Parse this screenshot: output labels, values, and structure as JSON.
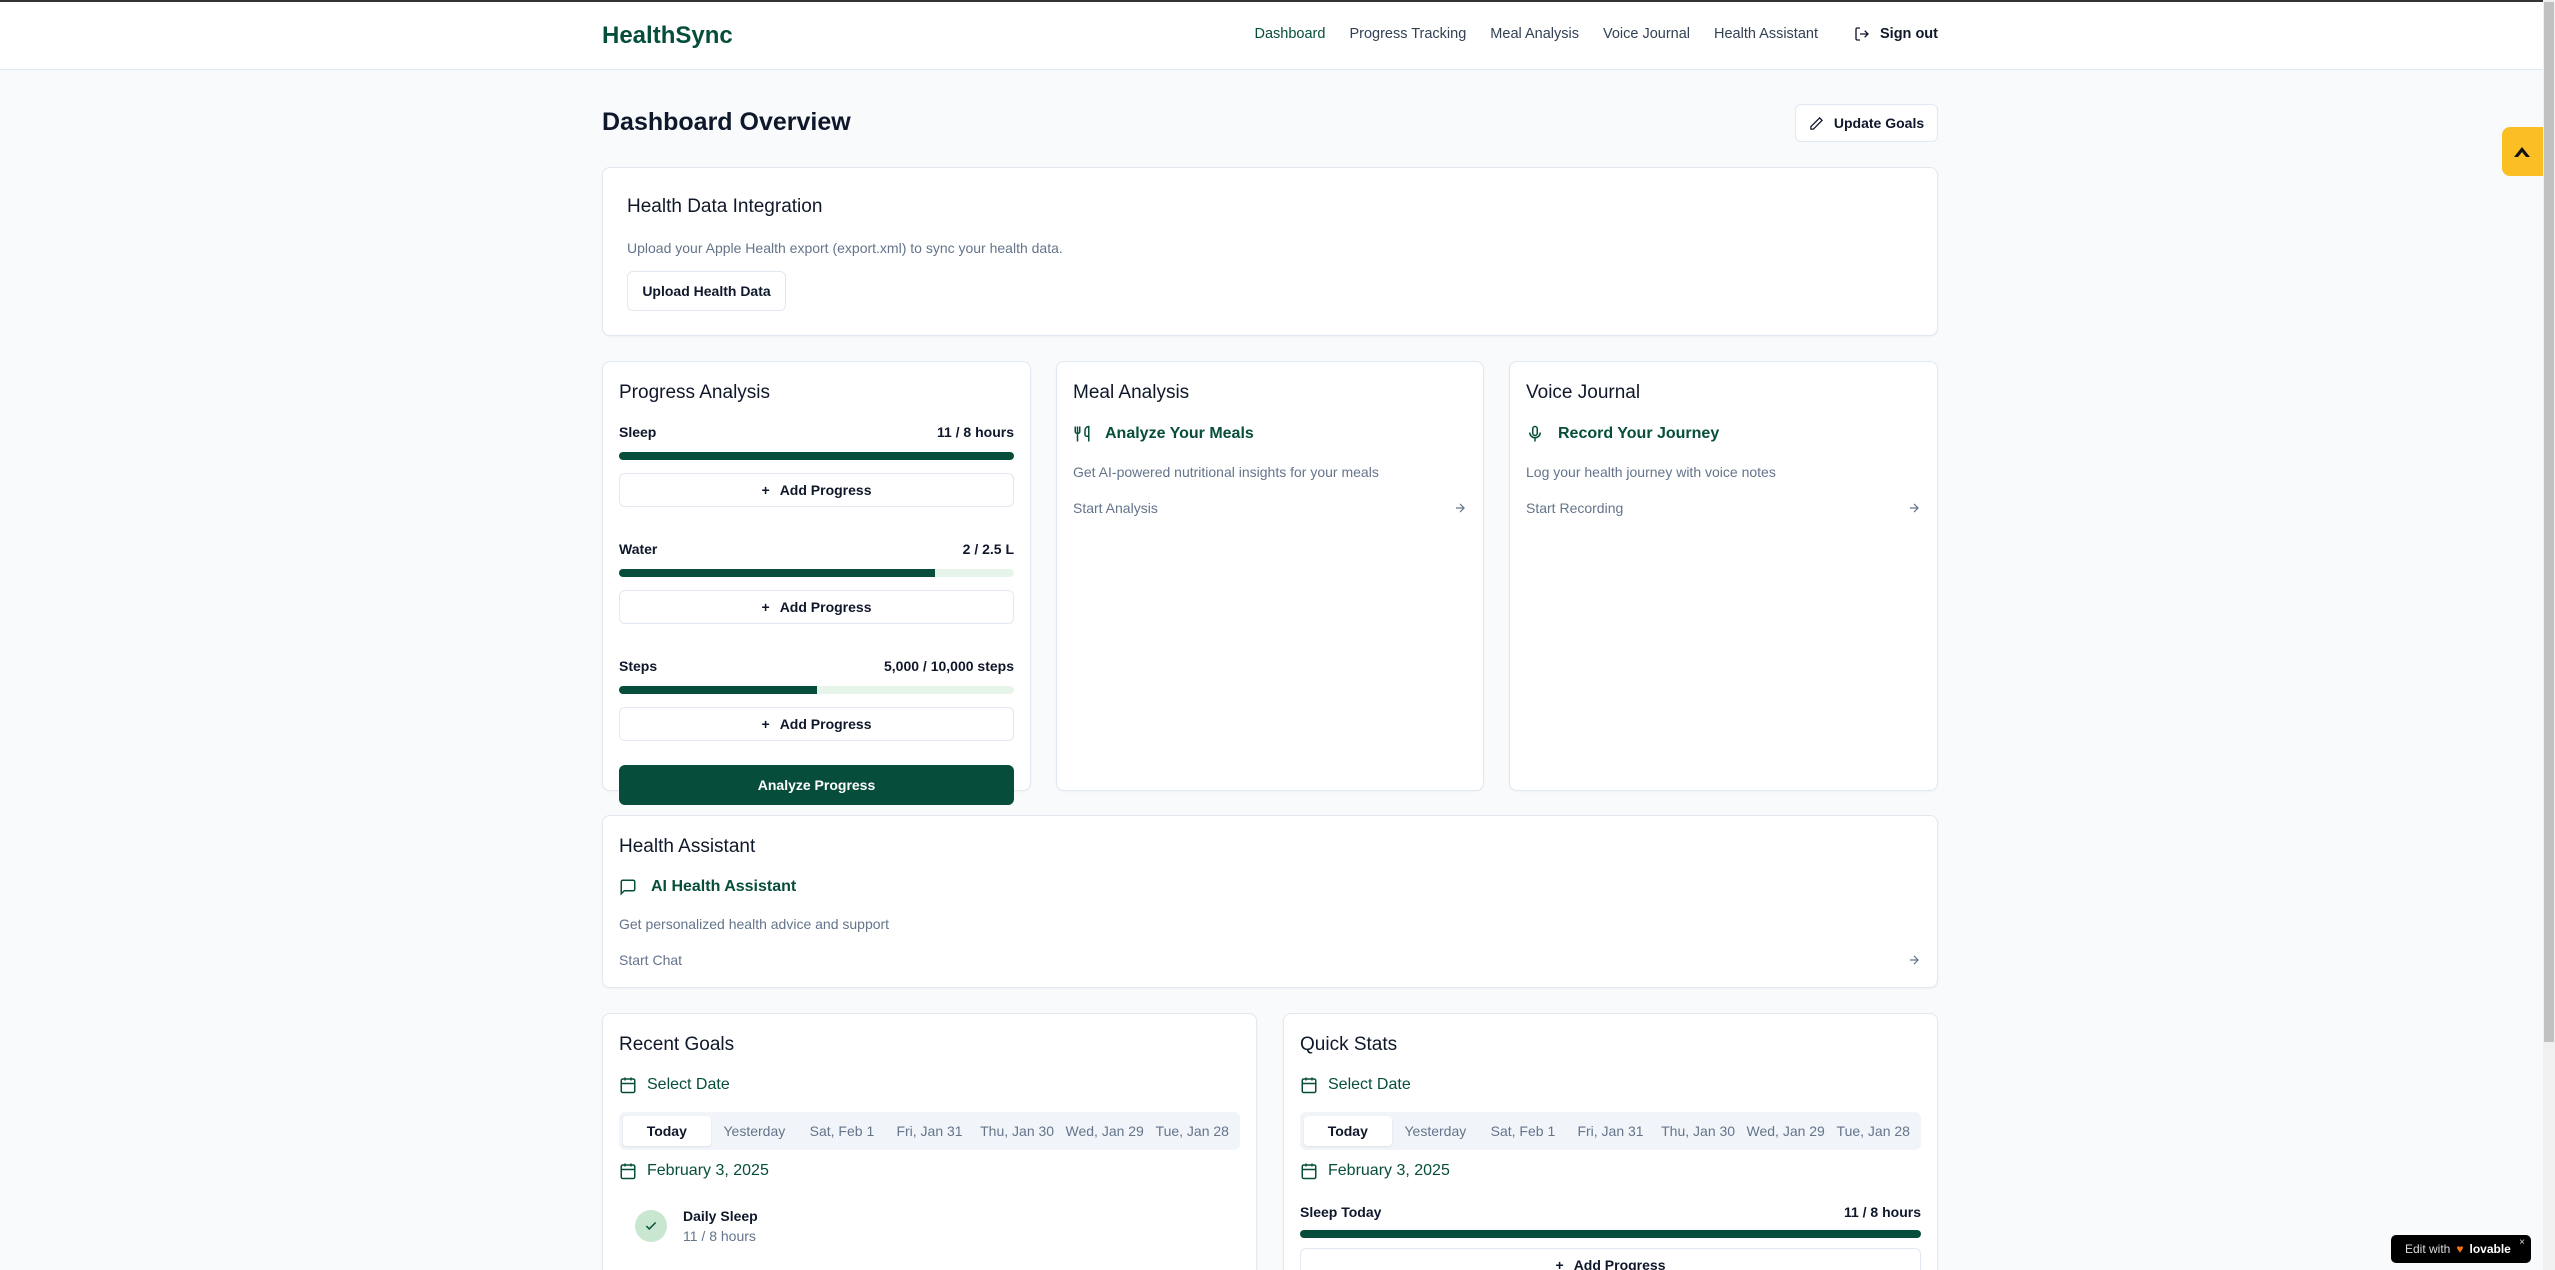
{
  "header": {
    "logo": "HealthSync",
    "nav": [
      "Dashboard",
      "Progress Tracking",
      "Meal Analysis",
      "Voice Journal",
      "Health Assistant"
    ],
    "active": "Dashboard",
    "sign_out": "Sign out"
  },
  "page": {
    "title": "Dashboard Overview",
    "update_goals": "Update Goals"
  },
  "integration": {
    "title": "Health Data Integration",
    "description": "Upload your Apple Health export (export.xml) to sync your health data.",
    "button": "Upload Health Data"
  },
  "progress": {
    "title": "Progress Analysis",
    "add_label": "Add Progress",
    "analyze_label": "Analyze Progress",
    "items": [
      {
        "label": "Sleep",
        "value": "11 / 8 hours",
        "percent": 100
      },
      {
        "label": "Water",
        "value": "2 / 2.5 L",
        "percent": 80
      },
      {
        "label": "Steps",
        "value": "5,000 / 10,000 steps",
        "percent": 50
      }
    ]
  },
  "meal": {
    "title": "Meal Analysis",
    "feature": "Analyze Your Meals",
    "description": "Get AI-powered nutritional insights for your meals",
    "link": "Start Analysis"
  },
  "voice": {
    "title": "Voice Journal",
    "feature": "Record Your Journey",
    "description": "Log your health journey with voice notes",
    "link": "Start Recording"
  },
  "assistant": {
    "title": "Health Assistant",
    "feature": "AI Health Assistant",
    "description": "Get personalized health advice and support",
    "link": "Start Chat"
  },
  "dates": [
    "Today",
    "Yesterday",
    "Sat, Feb 1",
    "Fri, Jan 31",
    "Thu, Jan 30",
    "Wed, Jan 29",
    "Tue, Jan 28"
  ],
  "recent_goals": {
    "title": "Recent Goals",
    "select_date": "Select Date",
    "current_date": "February 3, 2025",
    "goals": [
      {
        "name": "Daily Sleep",
        "value": "11 / 8 hours"
      }
    ]
  },
  "quick_stats": {
    "title": "Quick Stats",
    "select_date": "Select Date",
    "current_date": "February 3, 2025",
    "stat_label": "Sleep Today",
    "stat_value": "11 / 8 hours",
    "stat_percent": 100,
    "add_label": "Add Progress"
  },
  "badge": {
    "text": "Edit with",
    "brand": "lovable"
  },
  "colors": {
    "primary": "#064e3b",
    "accent": "#fbbf24",
    "background": "#f8fafc"
  }
}
